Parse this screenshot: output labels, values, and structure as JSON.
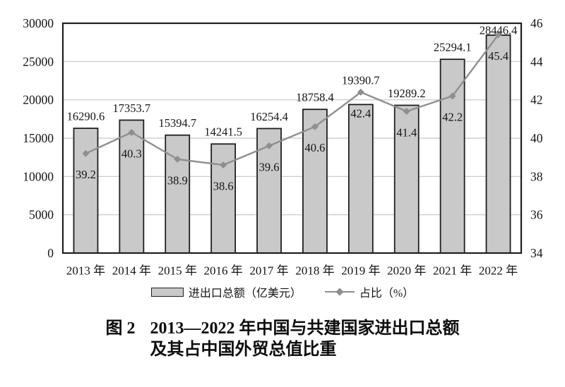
{
  "figure": {
    "caption_label": "图 2",
    "caption_line1": "2013—2022 年中国与共建国家进出口总额",
    "caption_line2": "及其占中国外贸总值比重"
  },
  "chart_data": {
    "type": "bar",
    "subtype": "bar-and-line-dual-axis",
    "categories": [
      "2013 年",
      "2014 年",
      "2015 年",
      "2016 年",
      "2017 年",
      "2018 年",
      "2019 年",
      "2020 年",
      "2021 年",
      "2022 年"
    ],
    "series": [
      {
        "name": "进出口总额（亿美元）",
        "type": "bar",
        "axis": "left",
        "values": [
          16290.6,
          17353.7,
          15394.7,
          14241.5,
          16254.4,
          18758.4,
          19390.7,
          19289.2,
          25294.1,
          28446.4
        ]
      },
      {
        "name": "占比（%）",
        "type": "line",
        "axis": "right",
        "values": [
          39.2,
          40.3,
          38.9,
          38.6,
          39.6,
          40.6,
          42.4,
          41.4,
          42.2,
          45.4
        ]
      }
    ],
    "left_axis": {
      "min": 0,
      "max": 30000,
      "ticks": [
        0,
        5000,
        10000,
        15000,
        20000,
        25000,
        30000
      ]
    },
    "right_axis": {
      "min": 34,
      "max": 46,
      "ticks": [
        34,
        36,
        38,
        40,
        42,
        44,
        46
      ]
    },
    "grid": true,
    "legend_position": "bottom",
    "title": "图 2　2013—2022 年中国与共建国家进出口总额及其占中国外贸总值比重",
    "colors": {
      "bar_fill": "#c9c9c9",
      "bar_stroke": "#1f1f1f",
      "line": "#8f8f8f",
      "grid": "#c6c6c6",
      "frame": "#1f1f1f",
      "text": "#151515"
    }
  }
}
